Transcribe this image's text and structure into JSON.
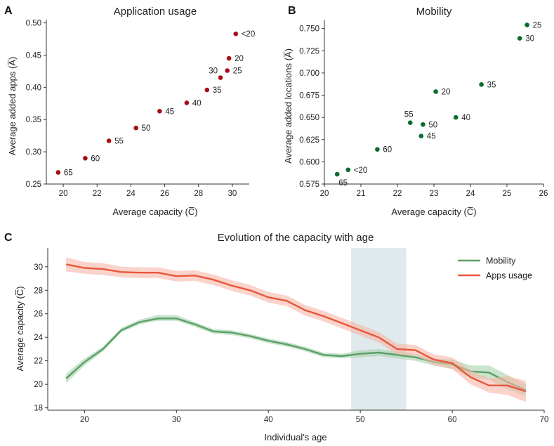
{
  "colors": {
    "apps_points": "#a50f15",
    "mobility_points": "#0b6b2f",
    "mobility_line": "#5aa067",
    "mobility_band": "#a6d2ad",
    "apps_line": "#e8573a",
    "apps_band": "#f6b6a6",
    "highlight": "#d5e1e5",
    "axis": "#333333"
  },
  "chart_data": [
    {
      "id": "A",
      "panel_letter": "A",
      "type": "scatter",
      "title": "Application usage",
      "xlabel": "Average capacity (C̅)",
      "ylabel": "Average added apps (A̅)",
      "xlim": [
        19,
        31
      ],
      "ylim": [
        0.25,
        0.505
      ],
      "xticks": [
        20,
        22,
        24,
        26,
        28,
        30
      ],
      "yticks": [
        0.25,
        0.3,
        0.35,
        0.4,
        0.45,
        0.5
      ],
      "ytick_labels": [
        "0.25",
        "0.30",
        "0.35",
        "0.40",
        "0.45",
        "0.50"
      ],
      "points": [
        {
          "label": "<20",
          "x": 30.2,
          "y": 0.483,
          "label_side": "right"
        },
        {
          "label": "20",
          "x": 29.8,
          "y": 0.445,
          "label_side": "right"
        },
        {
          "label": "25",
          "x": 29.7,
          "y": 0.426,
          "label_side": "right"
        },
        {
          "label": "30",
          "x": 29.3,
          "y": 0.415,
          "label_side": "left-up"
        },
        {
          "label": "35",
          "x": 28.5,
          "y": 0.396,
          "label_side": "right"
        },
        {
          "label": "40",
          "x": 27.3,
          "y": 0.376,
          "label_side": "right"
        },
        {
          "label": "45",
          "x": 25.7,
          "y": 0.363,
          "label_side": "right"
        },
        {
          "label": "50",
          "x": 24.3,
          "y": 0.337,
          "label_side": "right"
        },
        {
          "label": "55",
          "x": 22.7,
          "y": 0.317,
          "label_side": "right"
        },
        {
          "label": "60",
          "x": 21.3,
          "y": 0.29,
          "label_side": "right"
        },
        {
          "label": "65",
          "x": 19.7,
          "y": 0.268,
          "label_side": "right"
        }
      ]
    },
    {
      "id": "B",
      "panel_letter": "B",
      "type": "scatter",
      "title": "Mobility",
      "xlabel": "Average capacity (C̅)",
      "ylabel": "Average added locations (A̅)",
      "xlim": [
        20,
        26
      ],
      "ylim": [
        0.575,
        0.76
      ],
      "xticks": [
        20,
        21,
        22,
        23,
        24,
        25,
        26
      ],
      "yticks": [
        0.575,
        0.6,
        0.625,
        0.65,
        0.675,
        0.7,
        0.725,
        0.75
      ],
      "ytick_labels": [
        "0.575",
        "0.600",
        "0.625",
        "0.650",
        "0.675",
        "0.700",
        "0.725",
        "0.750"
      ],
      "points": [
        {
          "label": "25",
          "x": 25.55,
          "y": 0.754,
          "label_side": "right"
        },
        {
          "label": "30",
          "x": 25.35,
          "y": 0.739,
          "label_side": "right"
        },
        {
          "label": "35",
          "x": 24.3,
          "y": 0.687,
          "label_side": "right"
        },
        {
          "label": "20",
          "x": 23.05,
          "y": 0.679,
          "label_side": "right"
        },
        {
          "label": "40",
          "x": 23.6,
          "y": 0.65,
          "label_side": "right"
        },
        {
          "label": "55",
          "x": 22.35,
          "y": 0.644,
          "label_side": "up"
        },
        {
          "label": "50",
          "x": 22.7,
          "y": 0.642,
          "label_side": "right"
        },
        {
          "label": "45",
          "x": 22.65,
          "y": 0.629,
          "label_side": "right"
        },
        {
          "label": "60",
          "x": 21.45,
          "y": 0.614,
          "label_side": "right"
        },
        {
          "label": "<20",
          "x": 20.65,
          "y": 0.591,
          "label_side": "right"
        },
        {
          "label": "65",
          "x": 20.35,
          "y": 0.586,
          "label_side": "down"
        }
      ]
    },
    {
      "id": "C",
      "panel_letter": "C",
      "type": "line",
      "title": "Evolution of the capacity with age",
      "xlabel": "Individual's age",
      "ylabel": "Average capacity (C̅)",
      "xlim": [
        16,
        70
      ],
      "ylim": [
        17.8,
        31.6
      ],
      "xticks": [
        20,
        30,
        40,
        50,
        60,
        70
      ],
      "yticks": [
        18,
        20,
        22,
        24,
        26,
        28,
        30
      ],
      "highlight_range": [
        49,
        55
      ],
      "legend_position": "top-right",
      "series": [
        {
          "name": "Mobility",
          "color_key": "mobility",
          "x": [
            18,
            20,
            22,
            24,
            26,
            28,
            30,
            32,
            34,
            36,
            38,
            40,
            42,
            44,
            46,
            48,
            50,
            52,
            54,
            56,
            58,
            60,
            62,
            64,
            66,
            68
          ],
          "y": [
            20.5,
            21.9,
            23.0,
            24.6,
            25.3,
            25.6,
            25.6,
            25.1,
            24.5,
            24.4,
            24.1,
            23.7,
            23.4,
            23.0,
            22.5,
            22.4,
            22.6,
            22.7,
            22.5,
            22.3,
            21.9,
            21.7,
            21.1,
            21.0,
            20.2,
            19.5
          ],
          "lo": [
            20.1,
            21.6,
            22.8,
            24.4,
            25.1,
            25.4,
            25.4,
            24.9,
            24.3,
            24.2,
            23.9,
            23.5,
            23.2,
            22.8,
            22.3,
            22.2,
            22.3,
            22.4,
            22.2,
            22.0,
            21.6,
            21.3,
            20.6,
            20.4,
            19.6,
            19.0
          ],
          "hi": [
            20.9,
            22.2,
            23.2,
            24.8,
            25.5,
            25.9,
            25.9,
            25.3,
            24.7,
            24.6,
            24.3,
            23.9,
            23.6,
            23.2,
            22.7,
            22.6,
            22.9,
            23.0,
            22.8,
            22.6,
            22.2,
            22.1,
            21.6,
            21.6,
            20.8,
            20.0
          ]
        },
        {
          "name": "Apps usage",
          "color_key": "apps",
          "x": [
            18,
            20,
            22,
            24,
            26,
            28,
            30,
            32,
            34,
            36,
            38,
            40,
            42,
            44,
            46,
            48,
            50,
            52,
            54,
            56,
            58,
            60,
            62,
            64,
            66,
            68
          ],
          "y": [
            30.2,
            29.9,
            29.8,
            29.55,
            29.5,
            29.5,
            29.2,
            29.25,
            28.9,
            28.4,
            28.0,
            27.4,
            27.1,
            26.3,
            25.8,
            25.2,
            24.6,
            24.0,
            23.0,
            22.9,
            22.1,
            21.8,
            20.6,
            19.9,
            19.9,
            19.4
          ],
          "lo": [
            29.6,
            29.4,
            29.3,
            29.1,
            29.05,
            29.05,
            28.75,
            28.8,
            28.45,
            27.95,
            27.55,
            26.95,
            26.65,
            25.85,
            25.35,
            24.75,
            24.15,
            23.55,
            22.55,
            22.45,
            21.65,
            21.3,
            20.0,
            19.3,
            19.1,
            18.5
          ],
          "hi": [
            30.8,
            30.4,
            30.3,
            30.0,
            29.95,
            29.95,
            29.65,
            29.7,
            29.35,
            28.85,
            28.45,
            27.85,
            27.55,
            26.75,
            26.25,
            25.65,
            25.05,
            24.45,
            23.45,
            23.35,
            22.55,
            22.3,
            21.2,
            20.5,
            20.7,
            20.3
          ]
        }
      ]
    }
  ]
}
